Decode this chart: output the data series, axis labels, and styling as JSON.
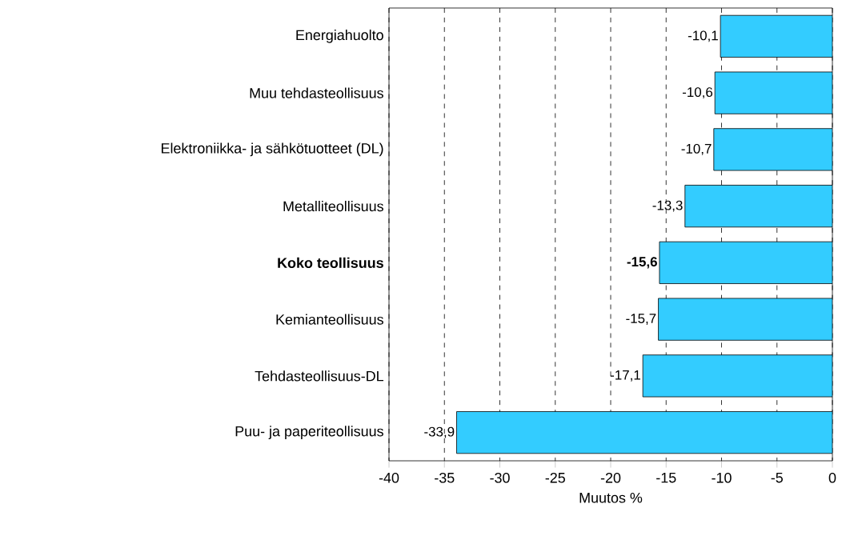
{
  "chart_data": {
    "type": "bar",
    "orientation": "horizontal",
    "xlabel": "Muutos %",
    "categories": [
      "Energiahuolto",
      "Muu tehdasteollisuus",
      "Elektroniikka- ja sähkötuotteet (DL)",
      "Metalliteollisuus",
      "**Koko teollisuus**",
      "Kemianteollisuus",
      "Tehdasteollisuus-DL",
      "Puu- ja paperiteollisuus"
    ],
    "values": [
      -10.1,
      -10.6,
      -10.7,
      -13.3,
      -15.6,
      -15.7,
      -17.1,
      -33.9
    ],
    "value_labels": [
      "-10,1",
      "-10,6",
      "-10,7",
      "-13,3",
      "**-15,6**",
      "-15,7",
      "-17,1",
      "-33,9"
    ],
    "color": "#33ccff",
    "xlim": [
      -40,
      0
    ],
    "xticks": [
      -40,
      -35,
      -30,
      -25,
      -20,
      -15,
      -10,
      -5,
      0
    ],
    "grid": "x"
  }
}
